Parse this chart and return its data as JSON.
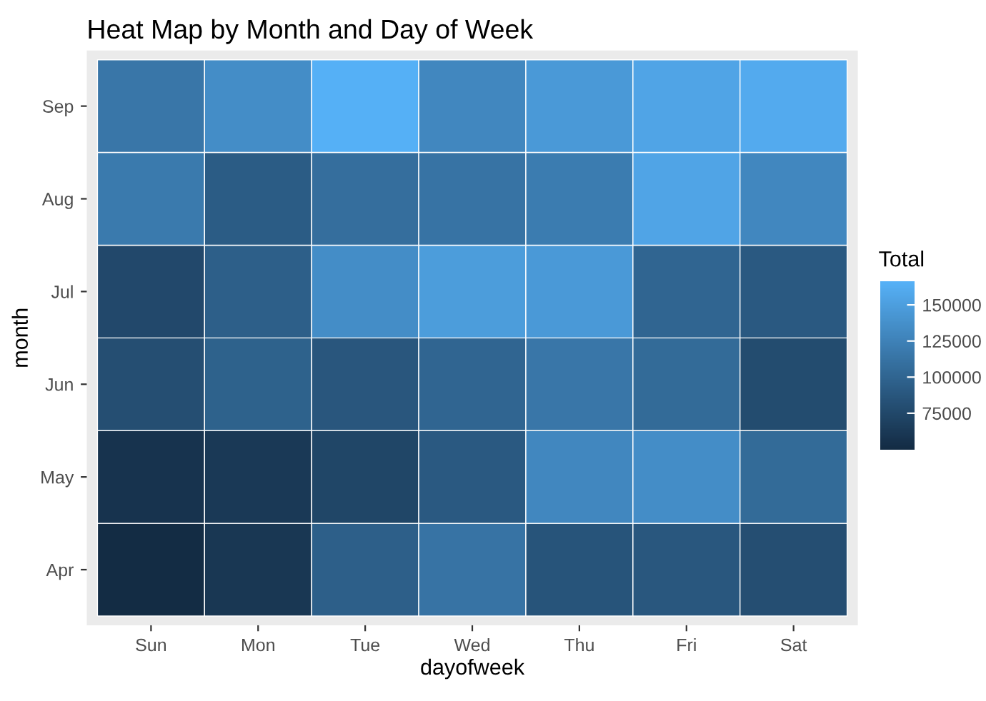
{
  "chart_data": {
    "type": "heatmap",
    "title": "Heat Map by Month and Day of Week",
    "xlabel": "dayofweek",
    "ylabel": "month",
    "legend_title": "Total",
    "categories": [
      "Sun",
      "Mon",
      "Tue",
      "Wed",
      "Thu",
      "Fri",
      "Sat"
    ],
    "y_categories": [
      "Sep",
      "Aug",
      "Jul",
      "Jun",
      "May",
      "Apr"
    ],
    "cells": [
      [
        115000,
        135000,
        165000,
        130000,
        145000,
        155000,
        160000
      ],
      [
        118000,
        92000,
        108000,
        112000,
        120000,
        155000,
        130000
      ],
      [
        75000,
        95000,
        135000,
        148000,
        145000,
        100000,
        90000
      ],
      [
        80000,
        97000,
        87000,
        100000,
        115000,
        105000,
        78000
      ],
      [
        57000,
        62000,
        73000,
        90000,
        130000,
        135000,
        105000
      ],
      [
        50000,
        60000,
        95000,
        112000,
        85000,
        88000,
        80000
      ]
    ],
    "colors": [
      "#132b43",
      "#56b1f7"
    ],
    "clim": [
      49500,
      166000
    ],
    "cticks": [
      75000,
      100000,
      125000,
      150000
    ],
    "grid": false
  }
}
